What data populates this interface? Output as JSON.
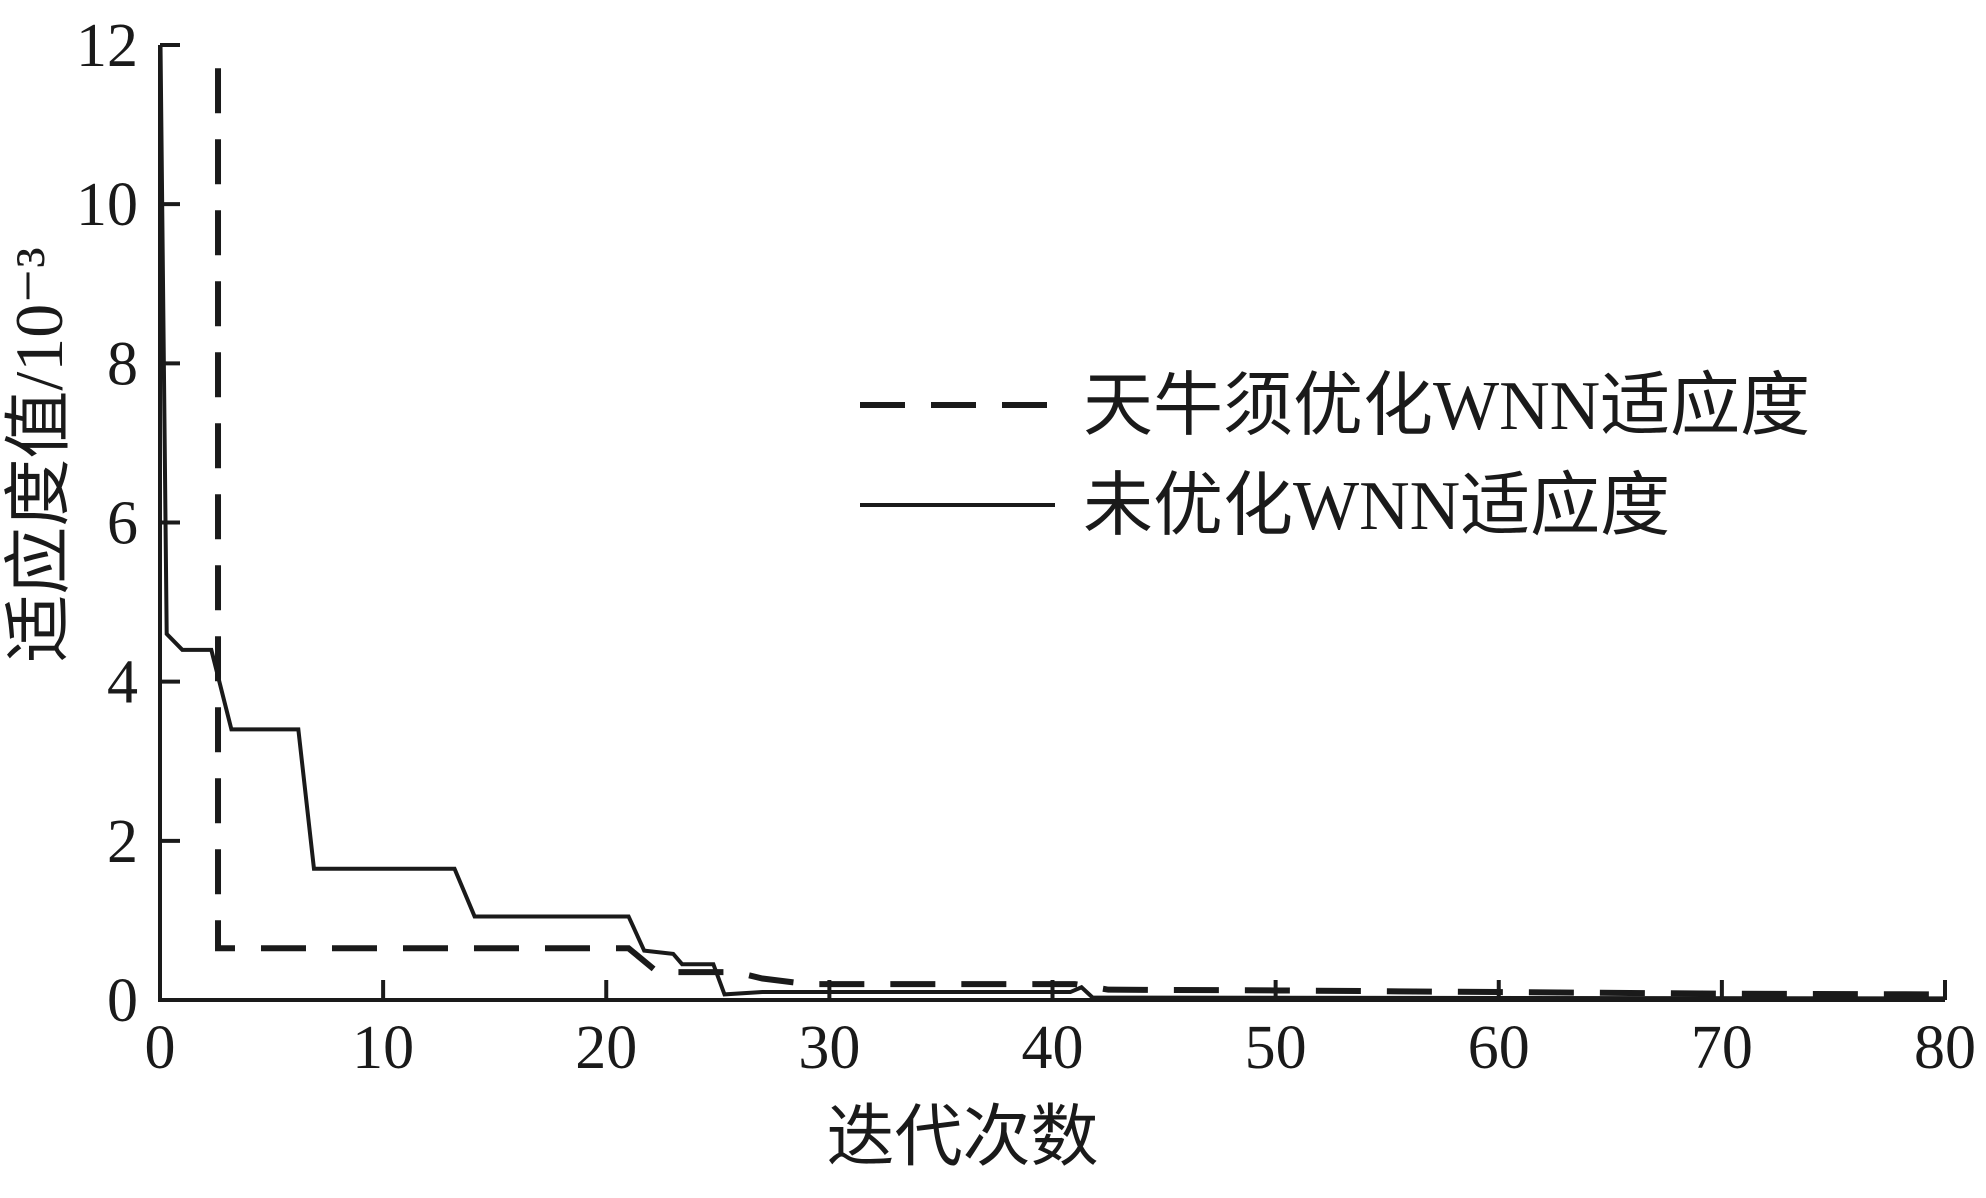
{
  "figure": {
    "background_color": "#ffffff",
    "axis_color": "#1a1a1a"
  },
  "chart_data": {
    "type": "line",
    "title": "",
    "xlabel": "迭代次数",
    "ylabel": "适应度值/10⁻³",
    "xlim": [
      0,
      80
    ],
    "ylim": [
      0,
      12
    ],
    "xticks": [
      0,
      10,
      20,
      30,
      40,
      50,
      60,
      70,
      80
    ],
    "yticks": [
      0,
      2,
      4,
      6,
      8,
      10,
      12
    ],
    "grid": false,
    "legend_position": "inside upper-right area, no border, dashed entry above solid entry",
    "series": [
      {
        "name": "天牛须优化WNN适应度",
        "line_style": "dashed",
        "color": "#1a1a1a",
        "points": [
          [
            2.6,
            12.6
          ],
          [
            2.6,
            0.65
          ],
          [
            21.0,
            0.65
          ],
          [
            22.3,
            0.35
          ],
          [
            25.8,
            0.35
          ],
          [
            27.0,
            0.27
          ],
          [
            29.0,
            0.2
          ],
          [
            41.0,
            0.2
          ],
          [
            42.5,
            0.13
          ],
          [
            50.0,
            0.12
          ],
          [
            60.0,
            0.1
          ],
          [
            70.0,
            0.08
          ],
          [
            80.0,
            0.07
          ]
        ]
      },
      {
        "name": "未优化WNN适应度",
        "line_style": "solid",
        "color": "#1a1a1a",
        "points": [
          [
            0.0,
            12.6
          ],
          [
            0.3,
            4.6
          ],
          [
            1.0,
            4.4
          ],
          [
            2.3,
            4.4
          ],
          [
            3.2,
            3.4
          ],
          [
            6.2,
            3.4
          ],
          [
            6.9,
            1.65
          ],
          [
            13.2,
            1.65
          ],
          [
            14.1,
            1.05
          ],
          [
            21.0,
            1.05
          ],
          [
            21.7,
            0.62
          ],
          [
            23.0,
            0.58
          ],
          [
            23.4,
            0.45
          ],
          [
            24.8,
            0.45
          ],
          [
            25.3,
            0.07
          ],
          [
            27.0,
            0.1
          ],
          [
            40.8,
            0.1
          ],
          [
            41.3,
            0.16
          ],
          [
            41.8,
            0.03
          ],
          [
            80.0,
            0.02
          ]
        ]
      }
    ]
  }
}
